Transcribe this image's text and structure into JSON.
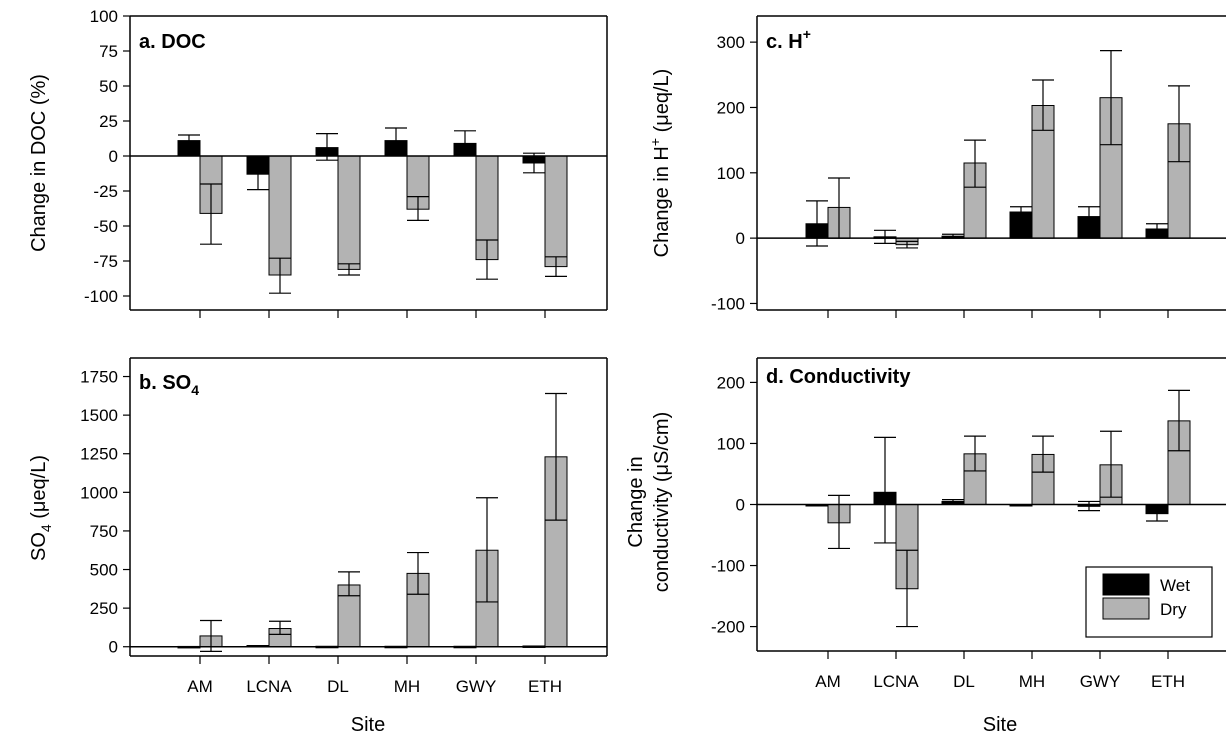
{
  "figure": {
    "colors": {
      "wet": "#000000",
      "dry": "#b3b3b3",
      "axis": "#000000",
      "background": "#ffffff"
    },
    "legend": {
      "placement": "bottom-right",
      "entries": [
        "Wet",
        "Dry"
      ]
    },
    "x_axis_title": "Site"
  },
  "chart_data": [
    {
      "id": "a",
      "type": "bar",
      "title_prefix": "a. ",
      "title": "DOC",
      "title_sup": "",
      "title_sub": "",
      "ylabel": "Change in DOC (%)",
      "ylim": [
        -110,
        100
      ],
      "yticks": [
        100,
        75,
        50,
        25,
        0,
        -25,
        -50,
        -75,
        -100
      ],
      "categories": [
        "AM",
        "LCNA",
        "DL",
        "MH",
        "GWY",
        "ETH"
      ],
      "show_xtick_labels": false,
      "series": [
        {
          "name": "Wet",
          "values": [
            11,
            -13,
            6,
            11,
            9,
            -5
          ],
          "err_low": [
            7,
            -24,
            -3,
            6,
            4,
            -12
          ],
          "err_high": [
            15,
            -2,
            16,
            20,
            18,
            2
          ]
        },
        {
          "name": "Dry",
          "values": [
            -41,
            -85,
            -81,
            -38,
            -74,
            -79
          ],
          "err_low": [
            -63,
            -98,
            -85,
            -46,
            -88,
            -86
          ],
          "err_high": [
            -20,
            -73,
            -77,
            -29,
            -60,
            -72
          ]
        }
      ]
    },
    {
      "id": "b",
      "type": "bar",
      "title_prefix": "b. ",
      "title": "SO",
      "title_sup": "",
      "title_sub": "4",
      "ylabel": "SO4 (μeq/L)",
      "ylim": [
        -60,
        1870
      ],
      "yticks": [
        1750,
        1500,
        1250,
        1000,
        750,
        500,
        250,
        0
      ],
      "categories": [
        "AM",
        "LCNA",
        "DL",
        "MH",
        "GWY",
        "ETH"
      ],
      "show_xtick_labels": true,
      "series": [
        {
          "name": "Wet",
          "values": [
            2,
            8,
            3,
            3,
            3,
            5
          ],
          "err_low": [
            2,
            8,
            3,
            3,
            3,
            5
          ],
          "err_high": [
            2,
            8,
            3,
            3,
            3,
            5
          ]
        },
        {
          "name": "Dry",
          "values": [
            70,
            118,
            400,
            475,
            625,
            1230
          ],
          "err_low": [
            -30,
            80,
            330,
            340,
            290,
            820
          ],
          "err_high": [
            170,
            165,
            485,
            610,
            965,
            1640
          ]
        }
      ]
    },
    {
      "id": "c",
      "type": "bar",
      "title_prefix": "c. ",
      "title": "H",
      "title_sup": "+",
      "title_sub": "",
      "ylabel": "Change in H+ (μeq/L)",
      "ylim": [
        -110,
        340
      ],
      "yticks": [
        300,
        200,
        100,
        0,
        -100
      ],
      "categories": [
        "AM",
        "LCNA",
        "DL",
        "MH",
        "GWY",
        "ETH"
      ],
      "show_xtick_labels": false,
      "series": [
        {
          "name": "Wet",
          "values": [
            22,
            2,
            3,
            40,
            33,
            14
          ],
          "err_low": [
            -12,
            -8,
            0,
            30,
            18,
            6
          ],
          "err_high": [
            57,
            12,
            6,
            48,
            48,
            22
          ]
        },
        {
          "name": "Dry",
          "values": [
            47,
            -10,
            115,
            203,
            215,
            175
          ],
          "err_low": [
            0,
            -15,
            78,
            165,
            143,
            117
          ],
          "err_high": [
            92,
            -5,
            150,
            242,
            287,
            233
          ]
        }
      ]
    },
    {
      "id": "d",
      "type": "bar",
      "title_prefix": "d. ",
      "title": "Conductivity",
      "title_sup": "",
      "title_sub": "",
      "ylabel_line1": "Change in",
      "ylabel_line2": "conductivity (μS/cm)",
      "ylim": [
        -240,
        240
      ],
      "yticks": [
        200,
        100,
        0,
        -100,
        -200
      ],
      "categories": [
        "AM",
        "LCNA",
        "DL",
        "MH",
        "GWY",
        "ETH"
      ],
      "show_xtick_labels": true,
      "series": [
        {
          "name": "Wet",
          "values": [
            -2,
            20,
            5,
            -2,
            -3,
            -15
          ],
          "err_low": [
            -2,
            -63,
            2,
            -2,
            -10,
            -27
          ],
          "err_high": [
            -2,
            110,
            8,
            -2,
            5,
            -3
          ]
        },
        {
          "name": "Dry",
          "values": [
            -30,
            -138,
            83,
            82,
            65,
            137
          ],
          "err_low": [
            -72,
            -200,
            55,
            53,
            12,
            88
          ],
          "err_high": [
            15,
            -75,
            112,
            112,
            120,
            187
          ]
        }
      ]
    }
  ]
}
